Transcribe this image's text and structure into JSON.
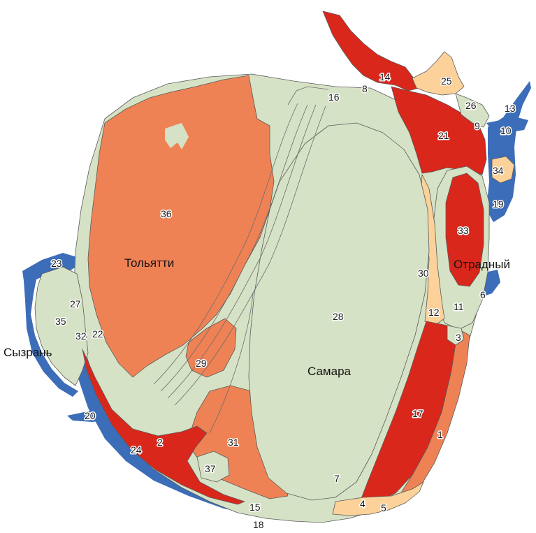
{
  "colors": {
    "background": "#ffffff",
    "light_green": "#d6e2c5",
    "red": "#d9271c",
    "orange": "#ef8255",
    "peach": "#fcd29a",
    "blue": "#3c6db8",
    "edge": "#5a5a5a"
  },
  "cities": {
    "tolyatti": "Тольятти",
    "samara": "Самара",
    "otradny": "Отрадный",
    "syzran": "Сызрань"
  },
  "regions": {
    "r1": "1",
    "r2": "2",
    "r3": "3",
    "r4": "4",
    "r5": "5",
    "r6": "6",
    "r7": "7",
    "r8": "8",
    "r9": "9",
    "r10": "10",
    "r11": "11",
    "r12": "12",
    "r13": "13",
    "r14": "14",
    "r15": "15",
    "r16": "16",
    "r17": "17",
    "r18": "18",
    "r19": "19",
    "r20": "20",
    "r21": "21",
    "r22": "22",
    "r23": "23",
    "r24": "24",
    "r25": "25",
    "r26": "26",
    "r27": "27",
    "r28": "28",
    "r29": "29",
    "r30": "30",
    "r31": "31",
    "r32": "32",
    "r33": "33",
    "r34": "34",
    "r35": "35",
    "r36": "36",
    "r37": "37"
  }
}
